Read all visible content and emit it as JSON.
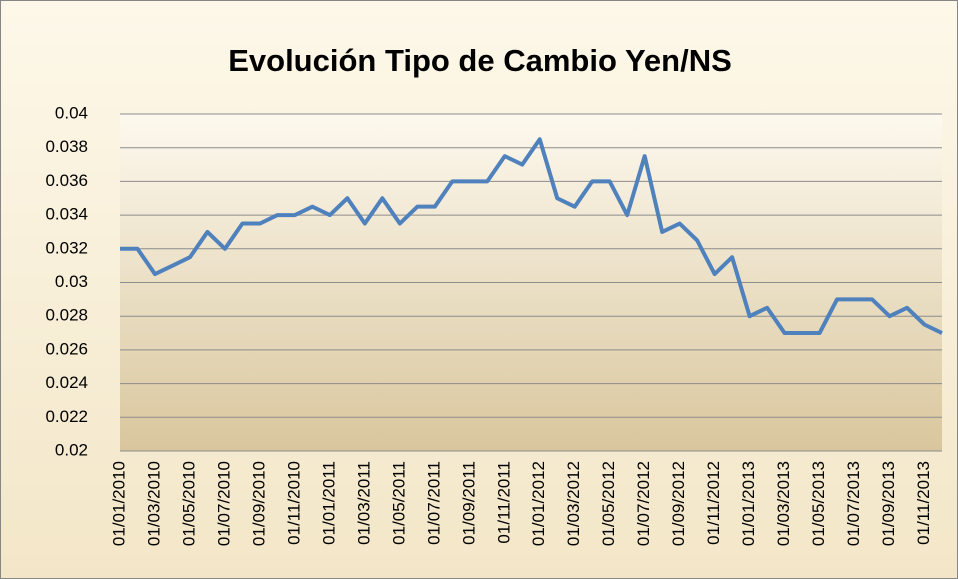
{
  "chart_data": {
    "type": "line",
    "title": "Evolución Tipo de Cambio Yen/NS",
    "categories": [
      "01/01/2010",
      null,
      "01/03/2010",
      null,
      "01/05/2010",
      null,
      "01/07/2010",
      null,
      "01/09/2010",
      null,
      "01/11/2010",
      null,
      "01/01/2011",
      null,
      "01/03/2011",
      null,
      "01/05/2011",
      null,
      "01/07/2011",
      null,
      "01/09/2011",
      null,
      "01/11/2011",
      null,
      "01/01/2012",
      null,
      "01/03/2012",
      null,
      "01/05/2012",
      null,
      "01/07/2012",
      null,
      "01/09/2012",
      null,
      "01/11/2012",
      null,
      "01/01/2013",
      null,
      "01/03/2013",
      null,
      "01/05/2013",
      null,
      "01/07/2013",
      null,
      "01/09/2013",
      null,
      "01/11/2013",
      null
    ],
    "values": [
      0.032,
      0.032,
      0.0305,
      0.031,
      0.0315,
      0.033,
      0.032,
      0.0335,
      0.0335,
      0.034,
      0.034,
      0.0345,
      0.034,
      0.035,
      0.0335,
      0.035,
      0.0335,
      0.0345,
      0.0345,
      0.036,
      0.036,
      0.036,
      0.0375,
      0.037,
      0.0385,
      0.035,
      0.0345,
      0.036,
      0.036,
      0.034,
      0.0375,
      0.033,
      0.0335,
      0.0325,
      0.0305,
      0.0315,
      0.028,
      0.0285,
      0.027,
      0.027,
      0.027,
      0.029,
      0.029,
      0.029,
      0.028,
      0.0285,
      0.0275,
      0.027
    ],
    "color": "#4f81bd",
    "ylim": [
      0.02,
      0.04
    ],
    "yticks": [
      0.02,
      0.022,
      0.024,
      0.026,
      0.028,
      0.03,
      0.032,
      0.034,
      0.036,
      0.038,
      0.04
    ],
    "grid": true
  }
}
